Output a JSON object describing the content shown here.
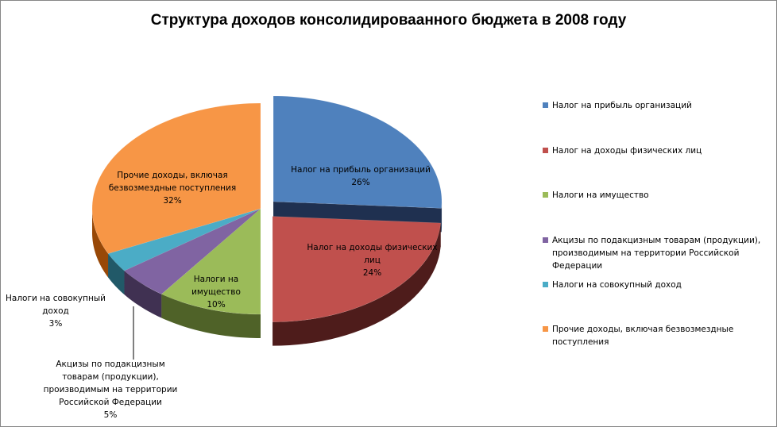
{
  "chart_data": {
    "type": "pie",
    "title": "Структура доходов консолидироваанного бюджета в 2008 году",
    "legend_position": "right",
    "slices": [
      {
        "name": "Налог на прибыль организаций",
        "value": 26,
        "label": "Налог на прибыль организаций",
        "pct": "26%",
        "color": "#4F81BD",
        "side": "#1F3050",
        "exploded": true
      },
      {
        "name": "Налог на доходы физических лиц",
        "value": 24,
        "label": "Налог на доходы физических лиц",
        "pct": "24%",
        "color": "#C0504D",
        "side": "#4E1C1B",
        "exploded": true
      },
      {
        "name": "Налоги на имущество",
        "value": 10,
        "label": "Налоги на имущество",
        "pct": "10%",
        "color": "#9BBB59",
        "side": "#4F6228",
        "exploded": false
      },
      {
        "name": "Акцизы по подакцизным товарам (продукции), производимым на территории Российской Федерации",
        "value": 5,
        "label": "Акцизы по подакцизным товарам (продукции), производимым на территории Российской Федерации",
        "pct": "5%",
        "color": "#8064A2",
        "side": "#403152",
        "exploded": false
      },
      {
        "name": "Налоги на совокупный доход",
        "value": 3,
        "label": "Налоги на совокупный доход",
        "pct": "3%",
        "color": "#4BACC6",
        "side": "#215968",
        "exploded": false
      },
      {
        "name": "Прочие доходы, включая безвозмездные поступления",
        "value": 32,
        "label": "Прочие доходы, включая безвозмездные поступления",
        "pct": "32%",
        "color": "#F79646",
        "side": "#984807",
        "exploded": false
      }
    ]
  }
}
